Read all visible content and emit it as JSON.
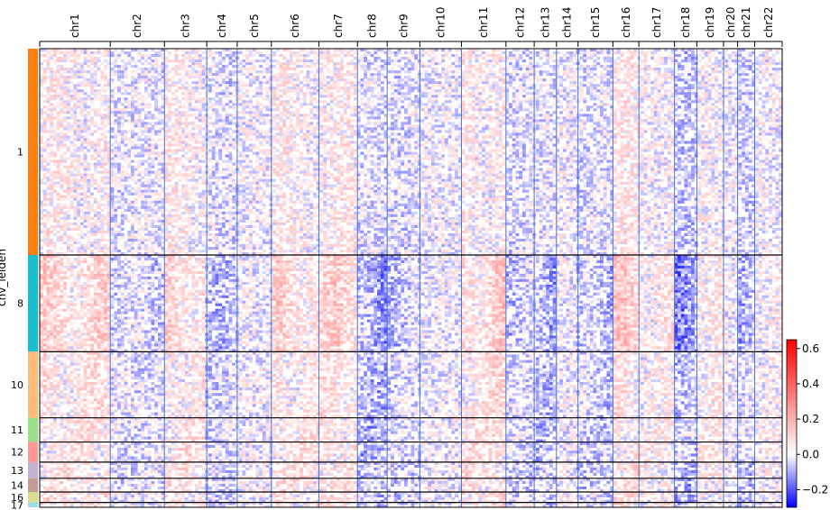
{
  "chart_data": {
    "type": "heatmap",
    "title": "",
    "xlabel": "",
    "ylabel": "cnv_leiden",
    "chromosomes": [
      "chr1",
      "chr2",
      "chr3",
      "chr4",
      "chr5",
      "chr6",
      "chr7",
      "chr8",
      "chr9",
      "chr10",
      "chr11",
      "chr12",
      "chr13",
      "chr14",
      "chr15",
      "chr16",
      "chr17",
      "chr18",
      "chr19",
      "chr20",
      "chr21",
      "chr22"
    ],
    "chromosome_bounds": [
      0,
      95,
      168,
      225,
      266,
      312,
      376,
      428,
      468,
      512,
      568,
      628,
      666,
      696,
      725,
      772,
      807,
      855,
      885,
      921,
      940,
      963,
      1000
    ],
    "chromosome_bias": [
      0.05,
      -0.02,
      0.05,
      -0.03,
      0.0,
      0.05,
      0.05,
      -0.06,
      -0.03,
      0.0,
      0.06,
      -0.03,
      -0.05,
      0.0,
      -0.04,
      0.06,
      0.03,
      -0.06,
      0.04,
      0.0,
      -0.04,
      0.02
    ],
    "groups": [
      {
        "label": "1",
        "cells": 256,
        "color": "#ff7f0e",
        "strength": 0.6
      },
      {
        "label": "8",
        "cells": 120,
        "color": "#17becf",
        "strength": 1.6
      },
      {
        "label": "10",
        "cells": 82,
        "color": "#ffbb78",
        "strength": 1.0
      },
      {
        "label": "11",
        "cells": 30,
        "color": "#98df8a",
        "strength": 1.0
      },
      {
        "label": "12",
        "cells": 25,
        "color": "#ff9896",
        "strength": 1.0
      },
      {
        "label": "13",
        "cells": 20,
        "color": "#c5b0d5",
        "strength": 1.0
      },
      {
        "label": "14",
        "cells": 17,
        "color": "#c49c94",
        "strength": 1.0
      },
      {
        "label": "16",
        "cells": 13,
        "color": "#dbdb8d",
        "strength": 1.0
      },
      {
        "label": "17",
        "cells": 6,
        "color": "#9edae5",
        "strength": 1.0
      }
    ],
    "colorbar": {
      "ticks": [
        0.6,
        0.4,
        0.2,
        0.0,
        -0.2
      ],
      "tick_labels": [
        "0.6",
        "0.4",
        "0.2",
        "0.0",
        "−0.2"
      ],
      "vmin": -0.3,
      "vmax": 0.65,
      "colormap": "bwr"
    }
  }
}
